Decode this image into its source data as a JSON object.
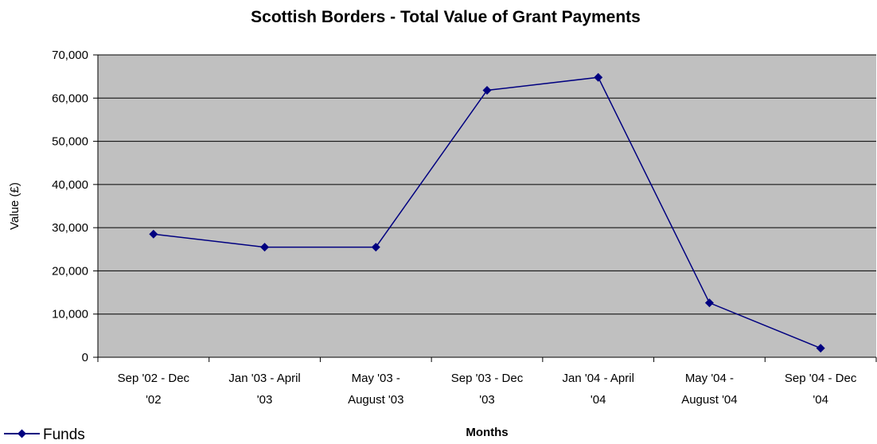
{
  "chart_data": {
    "type": "line",
    "title": "Scottish Borders - Total Value of Grant Payments",
    "xlabel": "Months",
    "ylabel": "Value (£)",
    "ylim": [
      0,
      70000
    ],
    "yticks": [
      "0",
      "10,000",
      "20,000",
      "30,000",
      "40,000",
      "50,000",
      "60,000",
      "70,000"
    ],
    "grid": true,
    "legend_position": "bottom-left",
    "categories": [
      [
        "Sep '02 - Dec",
        "'02"
      ],
      [
        "Jan '03 - April",
        "'03"
      ],
      [
        "May  '03 -",
        "August '03"
      ],
      [
        "Sep '03 - Dec",
        "'03"
      ],
      [
        "Jan '04 - April",
        "'04"
      ],
      [
        "May  '04 -",
        "August '04"
      ],
      [
        "Sep '04 - Dec",
        "'04"
      ]
    ],
    "series": [
      {
        "name": "Funds",
        "values": [
          28500,
          25500,
          25500,
          61800,
          64800,
          12600,
          2100
        ],
        "color": "#000080"
      }
    ],
    "colors": {
      "plot_background": "#c0c0c0",
      "gridline": "#000000"
    }
  }
}
